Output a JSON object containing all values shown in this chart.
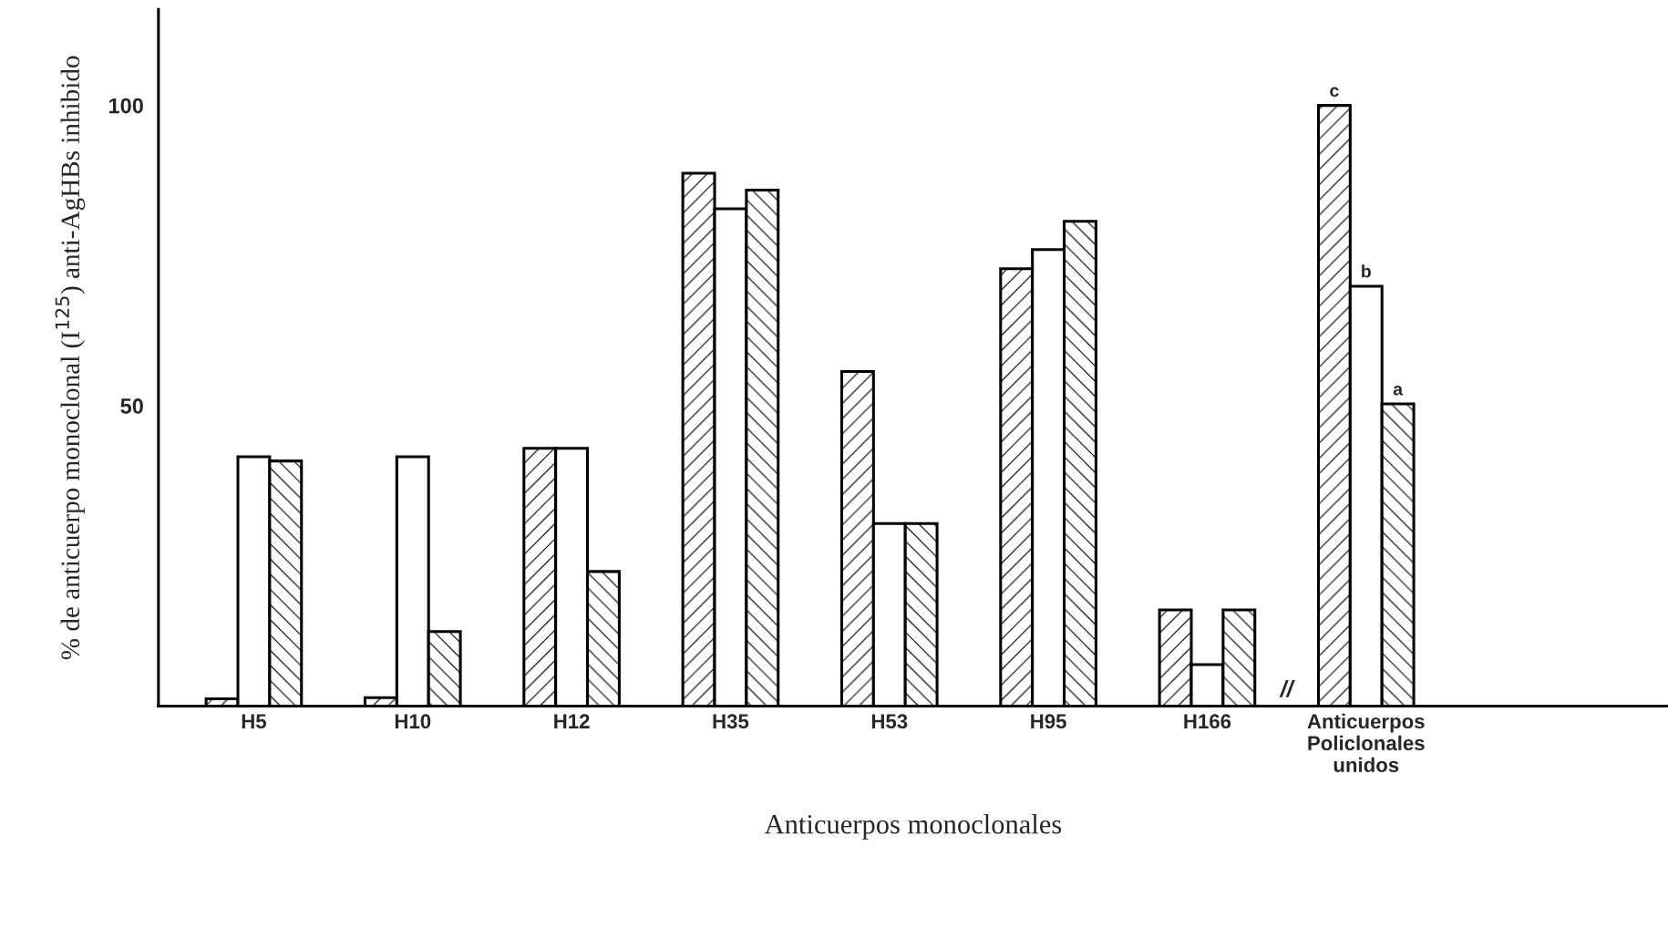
{
  "chart_data": {
    "type": "bar",
    "xlabel": "Anticuerpos monoclonales",
    "ylabel": "% de anticuerpo monoclonal (I$^{125}$) anti-AgHBs inhibido",
    "categories": [
      "H5",
      "H10",
      "H12",
      "H35",
      "H53",
      "H95",
      "H166",
      "Anticuerpos\nPoliclonales\nunidos"
    ],
    "series": [
      {
        "color": "#000000",
        "values": [
          1.2,
          1.4,
          42.9,
          88.7,
          55.7,
          72.8,
          16.0,
          100
        ]
      },
      {
        "color": "#ffffff",
        "values": [
          41.5,
          41.5,
          42.9,
          82.8,
          30.4,
          76.0,
          6.9,
          69.9
        ]
      },
      {
        "color": "#000000",
        "values": [
          40.8,
          12.4,
          22.4,
          85.9,
          30.4,
          80.7,
          16.0,
          50.3
        ]
      }
    ],
    "ylim": [
      0,
      116
    ],
    "yticks": [
      50,
      100
    ],
    "grid": false,
    "legend": false,
    "annotations": [
      "c",
      "b",
      "a",
      "//"
    ]
  }
}
